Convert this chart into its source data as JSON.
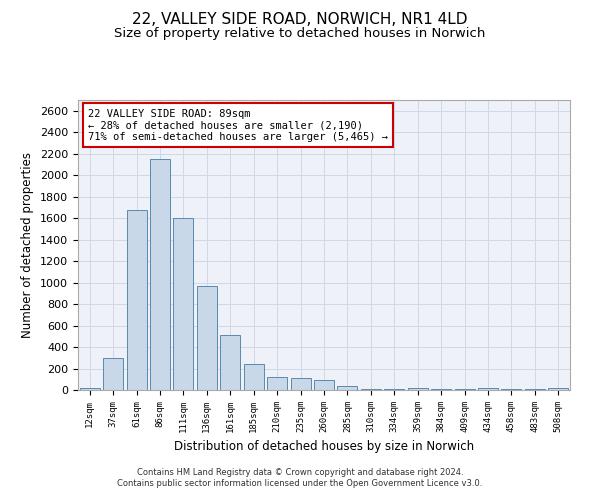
{
  "title_line1": "22, VALLEY SIDE ROAD, NORWICH, NR1 4LD",
  "title_line2": "Size of property relative to detached houses in Norwich",
  "xlabel": "Distribution of detached houses by size in Norwich",
  "ylabel": "Number of detached properties",
  "annotation_line1": "22 VALLEY SIDE ROAD: 89sqm",
  "annotation_line2": "← 28% of detached houses are smaller (2,190)",
  "annotation_line3": "71% of semi-detached houses are larger (5,465) →",
  "footer1": "Contains HM Land Registry data © Crown copyright and database right 2024.",
  "footer2": "Contains public sector information licensed under the Open Government Licence v3.0.",
  "bar_color": "#c8d8e8",
  "bar_edge_color": "#5a8ab0",
  "annotation_box_edge": "#cc0000",
  "grid_color": "#d0d8e8",
  "background_color": "#eef2f8",
  "categories": [
    "12sqm",
    "37sqm",
    "61sqm",
    "86sqm",
    "111sqm",
    "136sqm",
    "161sqm",
    "185sqm",
    "210sqm",
    "235sqm",
    "260sqm",
    "285sqm",
    "310sqm",
    "334sqm",
    "359sqm",
    "384sqm",
    "409sqm",
    "434sqm",
    "458sqm",
    "483sqm",
    "508sqm"
  ],
  "values": [
    20,
    300,
    1680,
    2150,
    1600,
    970,
    510,
    245,
    120,
    115,
    95,
    40,
    10,
    5,
    15,
    5,
    5,
    20,
    5,
    5,
    20
  ],
  "ylim": [
    0,
    2700
  ],
  "yticks": [
    0,
    200,
    400,
    600,
    800,
    1000,
    1200,
    1400,
    1600,
    1800,
    2000,
    2200,
    2400,
    2600
  ],
  "title_fontsize": 11,
  "subtitle_fontsize": 9.5
}
